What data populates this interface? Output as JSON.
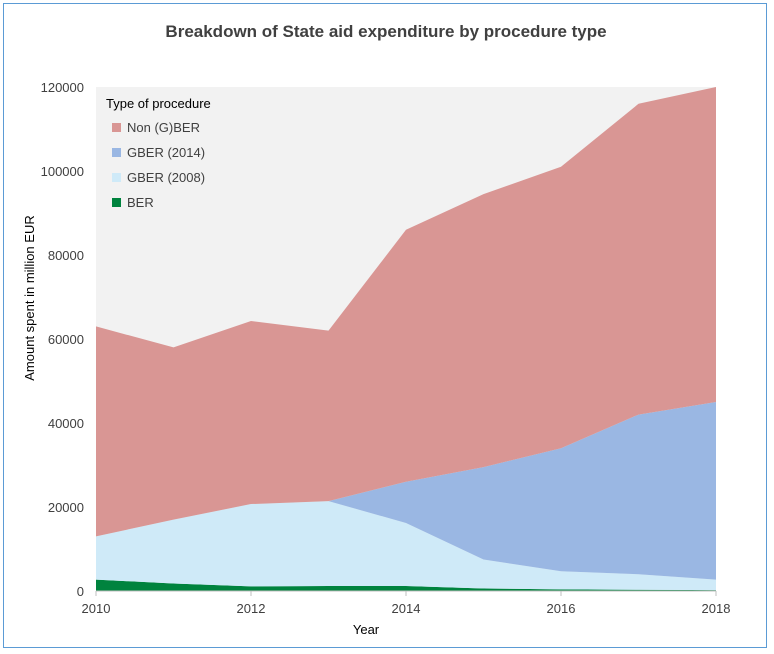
{
  "chart_data": {
    "type": "area",
    "stacked": true,
    "title": "Breakdown of State aid expenditure by procedure type",
    "xlabel": "Year",
    "ylabel": "Amount spent in million EUR",
    "xlim": [
      2010,
      2018
    ],
    "ylim": [
      0,
      120000
    ],
    "x_ticks": [
      "2010",
      "2012",
      "2014",
      "2016",
      "2018"
    ],
    "y_ticks": [
      "0",
      "20000",
      "40000",
      "60000",
      "80000",
      "100000",
      "120000"
    ],
    "grid": false,
    "legend": {
      "title": "Type of procedure",
      "placement": "top-left"
    },
    "x": [
      2010,
      2011,
      2012,
      2013,
      2014,
      2015,
      2016,
      2017,
      2018
    ],
    "series": [
      {
        "name": "BER",
        "color": "#00833e",
        "values": [
          2700,
          1800,
          1100,
          1200,
          1200,
          600,
          400,
          300,
          200
        ]
      },
      {
        "name": "GBER (2008)",
        "color": "#cfeaf8",
        "values": [
          10300,
          15200,
          19600,
          20200,
          15000,
          6900,
          4300,
          3700,
          2500
        ]
      },
      {
        "name": "GBER (2014)",
        "color": "#9ab7e3",
        "values": [
          0,
          0,
          0,
          0,
          9800,
          22000,
          29300,
          38000,
          42300
        ]
      },
      {
        "name": "Non (G)BER",
        "color": "#d99694",
        "values": [
          50000,
          41000,
          43600,
          40600,
          60000,
          65000,
          67000,
          74000,
          75000
        ]
      }
    ],
    "legend_order": [
      "Non (G)BER",
      "GBER (2014)",
      "GBER (2008)",
      "BER"
    ],
    "plot_background": "#f2f2f2"
  }
}
